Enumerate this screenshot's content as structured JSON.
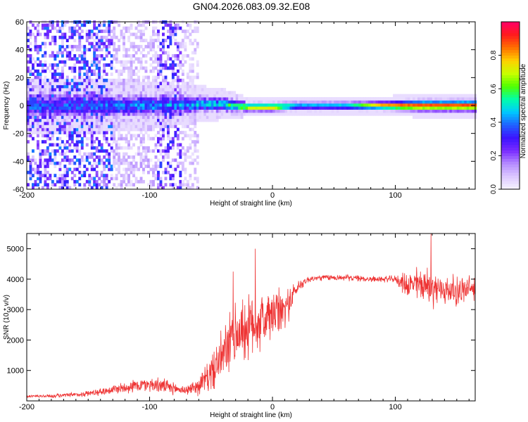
{
  "title": "GN04.2026.083.09.32.E08",
  "chart_data": [
    {
      "type": "heatmap",
      "title": "GN04.2026.083.09.32.E08",
      "xlabel": "Height of straight line (km)",
      "ylabel": "Frequency (Hz)",
      "xlim": [
        -200,
        165
      ],
      "ylim": [
        -60,
        60
      ],
      "xticks": [
        -200,
        -100,
        0,
        100
      ],
      "yticks": [
        60,
        40,
        20,
        0,
        -20,
        -40,
        -60
      ],
      "colorbar": {
        "label": "Normalized spectral amplitude",
        "range": [
          0.0,
          1.0
        ],
        "ticks": [
          0.0,
          0.2,
          0.4,
          0.6,
          0.8
        ],
        "colors": [
          "#f7f4ff",
          "#dcc8ff",
          "#b58cff",
          "#7a2cff",
          "#3c14ff",
          "#2060ff",
          "#00c8ff",
          "#00ffaa",
          "#50ff00",
          "#c8ff00",
          "#ffd000",
          "#ff7000",
          "#ff1c1c",
          "#ff0066"
        ]
      },
      "ridge": [
        {
          "x": -150,
          "freq": 0,
          "halfwidth": 9,
          "peak": 0.35
        },
        {
          "x": -100,
          "freq": 0,
          "halfwidth": 8,
          "peak": 0.4
        },
        {
          "x": -60,
          "freq": 1,
          "halfwidth": 6,
          "peak": 0.45
        },
        {
          "x": -40,
          "freq": 1,
          "halfwidth": 5,
          "peak": 0.5
        },
        {
          "x": -20,
          "freq": -1,
          "halfwidth": 3,
          "peak": 0.75
        },
        {
          "x": 0,
          "freq": -1,
          "halfwidth": 3,
          "peak": 0.8
        },
        {
          "x": 20,
          "freq": 0,
          "halfwidth": 3,
          "peak": 0.45
        },
        {
          "x": 60,
          "freq": 0,
          "halfwidth": 3,
          "peak": 0.5
        },
        {
          "x": 90,
          "freq": 0,
          "halfwidth": 3,
          "peak": 0.85
        },
        {
          "x": 120,
          "freq": 0,
          "halfwidth": 4,
          "peak": 0.9
        },
        {
          "x": 165,
          "freq": 0,
          "halfwidth": 4,
          "peak": 0.9
        }
      ],
      "noise_regions": [
        {
          "x_from": -200,
          "x_to": -130,
          "amplitude": 0.35
        },
        {
          "x_from": -130,
          "x_to": -95,
          "amplitude": 0.12
        },
        {
          "x_from": -95,
          "x_to": -75,
          "amplitude": 0.3
        },
        {
          "x_from": -75,
          "x_to": -60,
          "amplitude": 0.1
        }
      ]
    },
    {
      "type": "line",
      "xlabel": "Height of straight line (km)",
      "ylabel": "SNR (10 * v/v)",
      "xlim": [
        -200,
        165
      ],
      "ylim": [
        0,
        5500
      ],
      "xticks": [
        -200,
        -100,
        0,
        100
      ],
      "yticks": [
        1000,
        2000,
        3000,
        4000,
        5000
      ],
      "color": "#ee3333",
      "series": [
        {
          "name": "SNR",
          "x": [
            -200,
            -180,
            -160,
            -140,
            -120,
            -100,
            -90,
            -80,
            -70,
            -60,
            -50,
            -40,
            -30,
            -20,
            -10,
            0,
            10,
            20,
            25,
            30,
            40,
            60,
            80,
            90,
            100,
            110,
            120,
            130,
            140,
            150,
            165
          ],
          "mean": [
            150,
            160,
            200,
            300,
            450,
            550,
            500,
            400,
            350,
            500,
            900,
            1500,
            2200,
            2400,
            2600,
            2800,
            3000,
            3700,
            3900,
            4000,
            4050,
            4050,
            4000,
            4000,
            4000,
            3800,
            3850,
            3700,
            3650,
            3600,
            3700
          ],
          "noise": [
            50,
            60,
            80,
            120,
            200,
            250,
            250,
            200,
            150,
            300,
            600,
            900,
            1100,
            1100,
            1000,
            900,
            700,
            250,
            150,
            120,
            100,
            100,
            100,
            100,
            120,
            450,
            600,
            600,
            500,
            500,
            450
          ]
        }
      ],
      "spikes": [
        {
          "x": -14,
          "y": 5000
        },
        {
          "x": -32,
          "y": 4250
        },
        {
          "x": 129,
          "y": 5500
        }
      ]
    }
  ]
}
